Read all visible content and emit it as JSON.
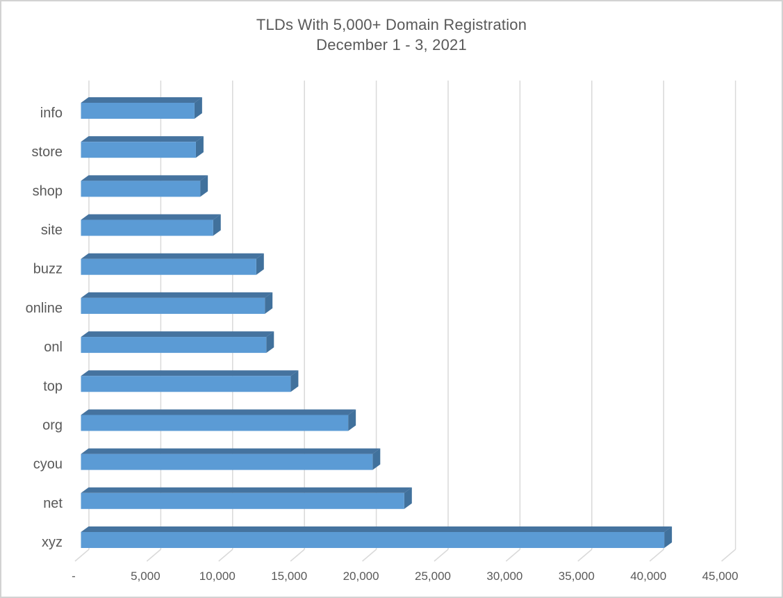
{
  "chart_data": {
    "type": "bar",
    "orientation": "horizontal",
    "style": "3d",
    "title": "TLDs With 5,000+ Domain Registration",
    "subtitle": "December 1 - 3, 2021",
    "categories_top_to_bottom": [
      "info",
      "store",
      "shop",
      "site",
      "buzz",
      "online",
      "onl",
      "top",
      "org",
      "cyou",
      "net",
      "xyz"
    ],
    "values": [
      7900,
      8000,
      8300,
      9200,
      12200,
      12800,
      12900,
      14600,
      18600,
      20300,
      22500,
      40600
    ],
    "x_tick_labels": [
      "-",
      "5,000",
      "10,000",
      "15,000",
      "20,000",
      "25,000",
      "30,000",
      "35,000",
      "40,000",
      "45,000"
    ],
    "x_tick_values": [
      0,
      5000,
      10000,
      15000,
      20000,
      25000,
      30000,
      35000,
      40000,
      45000
    ],
    "xlim": [
      0,
      45000
    ],
    "grid": true,
    "legend": false,
    "colors": {
      "bar_front": "#5B9BD5",
      "bar_top": "#45739F",
      "bar_side": "#41719C",
      "gridline": "#D9D9D9",
      "label_text": "#595959",
      "title_text": "#595959",
      "background": "#FFFFFF",
      "border": "#D2D2D2"
    }
  }
}
